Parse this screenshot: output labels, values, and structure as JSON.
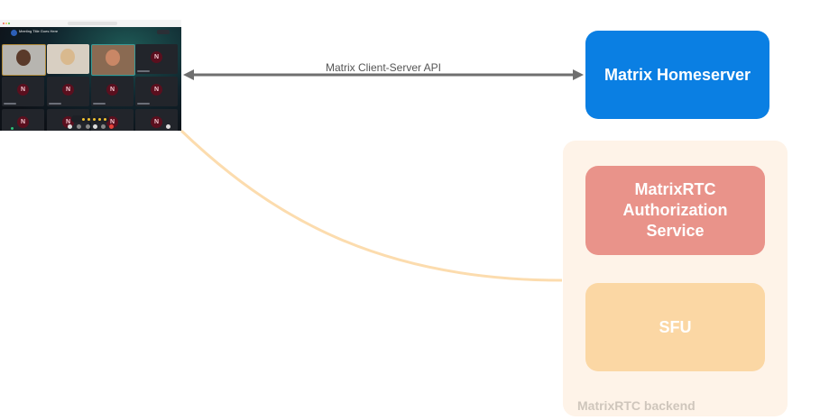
{
  "screenshot": {
    "meeting_title": "Meeting Title Goes Here",
    "tile_initial": "N"
  },
  "arrow_label": "Matrix Client-Server API",
  "homeserver": {
    "label": "Matrix Homeserver",
    "color": "#0a7fe3"
  },
  "backend": {
    "label": "MatrixRTC backend",
    "color": "#fef3e8",
    "auth_service": {
      "label": "MatrixRTC Authorization Service",
      "color": "#e9938a"
    },
    "sfu": {
      "label": "SFU",
      "color": "#fbd7a4"
    }
  }
}
